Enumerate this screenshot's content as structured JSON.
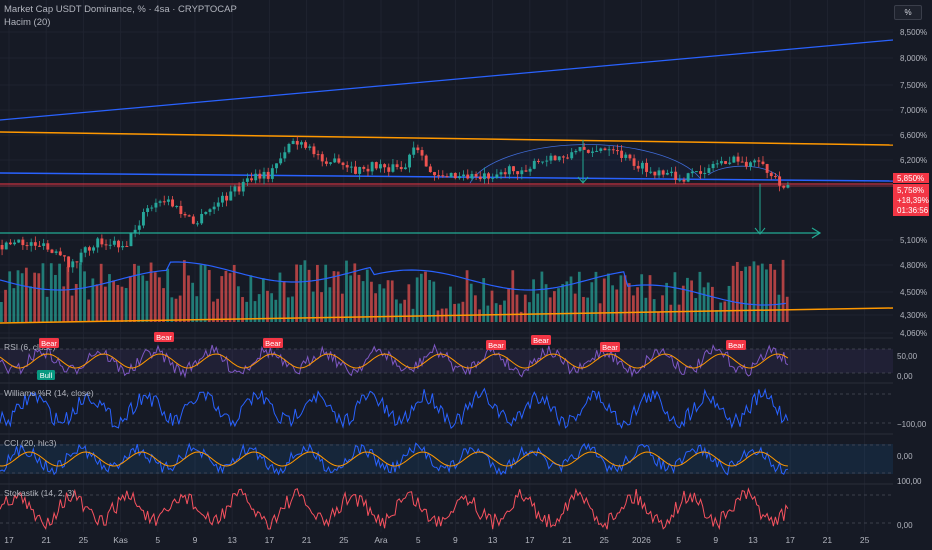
{
  "header": {
    "symbol_title": "Market Cap USDT Dominance, % · 4sa · CRYPTOCAP",
    "volume_label": "Hacim (20)",
    "scale_button": "%"
  },
  "price_axis": {
    "ticks": [
      "8,500%",
      "8,000%",
      "7,500%",
      "7,000%",
      "6,600%",
      "6,200%",
      "5,100%",
      "4,800%",
      "4,500%",
      "4,300%",
      "4,060%"
    ],
    "level_tag": "5,850%",
    "price_tag": {
      "value": "5,758%",
      "change": "+18,39%",
      "countdown": "01:36:56"
    }
  },
  "time_axis": [
    "17",
    "21",
    "25",
    "Kas",
    "5",
    "9",
    "13",
    "17",
    "21",
    "25",
    "Ara",
    "5",
    "9",
    "13",
    "17",
    "21",
    "25",
    "2026",
    "5",
    "9",
    "13",
    "17",
    "21",
    "25"
  ],
  "signals": {
    "bear": "Bear",
    "bull": "Bull"
  },
  "panes": {
    "rsi": {
      "label": "RSI (6, close)",
      "ticks": [
        "50,00",
        "0,00"
      ]
    },
    "williams": {
      "label": "Williams %R (14, close)",
      "ticks": [
        "−100,00"
      ]
    },
    "cci": {
      "label": "CCI (20, hlc3)",
      "ticks": [
        "0,00"
      ]
    },
    "stoch": {
      "label": "Stokastik (14, 2, 3)",
      "ticks": [
        "100,00",
        "0,00"
      ]
    }
  },
  "colors": {
    "background": "#161a25",
    "up": "#26a69a",
    "down": "#ef5350",
    "blue_line": "#2962ff",
    "orange_line": "#ff9800",
    "red_line": "#f23645",
    "teal_target": "#22ab94",
    "rsi_line": "#7e57c2",
    "williams_line": "#2962ff",
    "osc_signal": "#ff9800",
    "stoch_line": "#f7525f"
  },
  "chart_data": {
    "type": "candlestick",
    "series": [
      {
        "name": "Market Cap USDT Dominance, %",
        "last_value": 5.758,
        "change_pct": 18.39
      }
    ],
    "yscale": "log",
    "ylim": [
      4.06,
      8.6
    ],
    "indicators": [
      "Hacim (20)",
      "RSI (6, close)",
      "Williams %R (14, close)",
      "CCI (20, hlc3)",
      "Stokastik (14, 2, 3)"
    ]
  }
}
